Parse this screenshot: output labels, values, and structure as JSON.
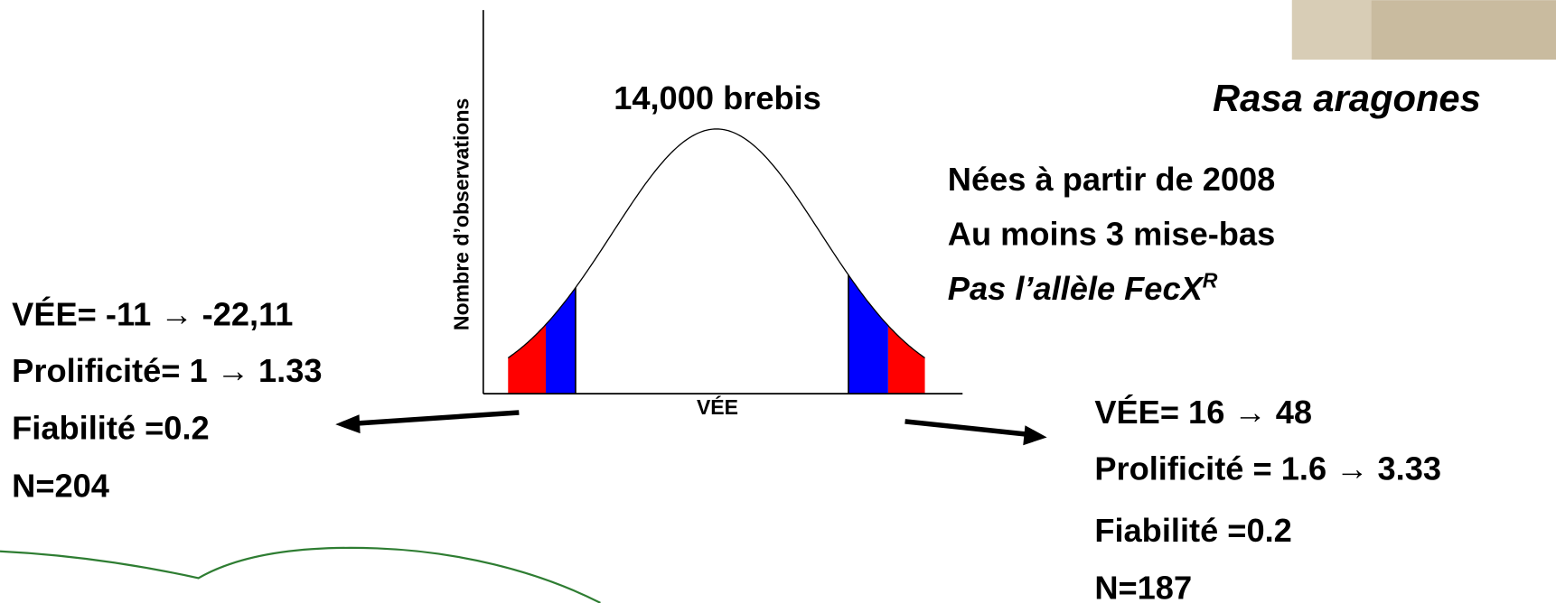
{
  "chart": {
    "y_axis_label": "Nombre d’observations",
    "x_axis_label": "VÉE",
    "population_label": "14,000 brebis"
  },
  "breed": "Rasa aragones",
  "criteria": [
    "Nées à partir de 2008",
    "Au moins 3 mise-bas"
  ],
  "criteria_allele": {
    "text": "Pas l’allèle FecX",
    "superscript": "R"
  },
  "low_group": [
    "VÉE= -11 → -22,11",
    "Prolificité= 1 → 1.33",
    "Fiabilité =0.2",
    "N=204"
  ],
  "high_group": [
    "VÉE= 16 → 48",
    "Prolificité = 1.6 → 3.33",
    "Fiabilité =0.2",
    "N=187"
  ]
}
